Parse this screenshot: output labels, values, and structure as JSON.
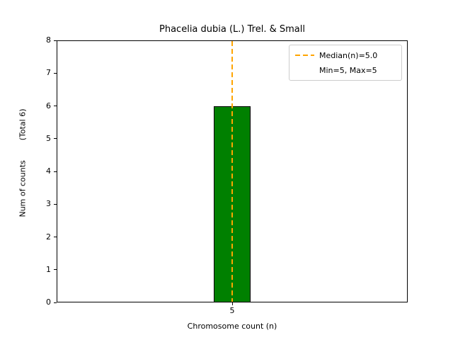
{
  "chart_data": {
    "type": "bar",
    "title": "Phacelia dubia (L.) Trel. & Small",
    "xlabel": "Chromosome count (n)",
    "ylabel": "Num of counts        (Total 6)",
    "categories": [
      "5"
    ],
    "values": [
      6
    ],
    "ylim": [
      0,
      8
    ],
    "yticks": [
      0,
      1,
      2,
      3,
      4,
      5,
      6,
      7,
      8
    ],
    "xticks": [
      {
        "label": "5"
      }
    ],
    "bar_color": "#008000",
    "bar_edge_color": "#000000",
    "median_line": {
      "x": 5,
      "color": "#ffa500",
      "style": "dashed"
    },
    "legend": {
      "position": "upper right",
      "entries": [
        {
          "sample": "dashed-line",
          "color": "#ffa500",
          "label": "Median(n)=5.0"
        },
        {
          "sample": "none",
          "color": "",
          "label": "Min=5, Max=5"
        }
      ]
    },
    "grid": false
  }
}
